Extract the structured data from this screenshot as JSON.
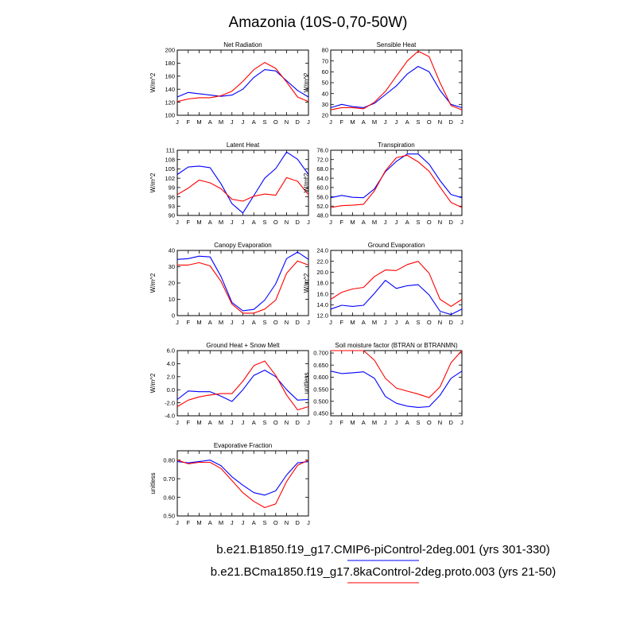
{
  "title": "Amazonia (10S-0,70-50W)",
  "months": [
    "J",
    "F",
    "M",
    "A",
    "M",
    "J",
    "J",
    "A",
    "S",
    "O",
    "N",
    "D",
    "J"
  ],
  "legend": [
    {
      "label": "b.e21.B1850.f19_g17.CMIP6-piControl-2deg.001 (yrs 301-330)",
      "color": "#0000ff"
    },
    {
      "label": "b.e21.BCma1850.f19_g17.8kaControl-2deg.proto.003 (yrs 21-50)",
      "color": "#ff0000"
    }
  ],
  "chart_data": [
    {
      "type": "line",
      "title": "Net Radiation",
      "ylabel": "W/m^2",
      "ylim": [
        100,
        200
      ],
      "yticks": [
        100,
        120,
        140,
        160,
        180,
        200
      ],
      "ytick_labels": [
        "100",
        "120",
        "140",
        "160",
        "180",
        "200"
      ],
      "series": [
        {
          "name": "b.e21.B1850.f19_g17.CMIP6-piControl-2deg.001 (yrs 301-330)",
          "color": "#0000ff",
          "values": [
            128,
            135,
            133,
            131,
            129,
            131,
            140,
            158,
            170,
            168,
            153,
            138,
            128
          ]
        },
        {
          "name": "b.e21.BCma1850.f19_g17.8kaControl-2deg.proto.003 (yrs 21-50)",
          "color": "#ff0000",
          "values": [
            121,
            125,
            127,
            127,
            130,
            137,
            152,
            170,
            181,
            172,
            151,
            128,
            121
          ]
        }
      ]
    },
    {
      "type": "line",
      "title": "Sensible Heat",
      "ylabel": "W/m^2",
      "ylim": [
        20,
        80
      ],
      "yticks": [
        20,
        30,
        40,
        50,
        60,
        70,
        80
      ],
      "ytick_labels": [
        "20",
        "30",
        "40",
        "50",
        "60",
        "70",
        "80"
      ],
      "series": [
        {
          "name": "b.e21.B1850.f19_g17.CMIP6-piControl-2deg.001 (yrs 301-330)",
          "color": "#0000ff",
          "values": [
            27,
            30,
            28,
            27,
            31,
            39,
            47,
            58,
            65,
            60,
            43,
            30,
            27
          ]
        },
        {
          "name": "b.e21.BCma1850.f19_g17.8kaControl-2deg.proto.003 (yrs 21-50)",
          "color": "#ff0000",
          "values": [
            25,
            27,
            27,
            26,
            32,
            42,
            56,
            70,
            79,
            74,
            50,
            29,
            25
          ]
        }
      ]
    },
    {
      "type": "line",
      "title": "Latent Heat",
      "ylabel": "W/m^2",
      "ylim": [
        90,
        111
      ],
      "yticks": [
        90,
        93,
        96,
        99,
        102,
        105,
        108,
        111
      ],
      "ytick_labels": [
        "90",
        "93",
        "96",
        "99",
        "102",
        "105",
        "108",
        "111"
      ],
      "series": [
        {
          "name": "b.e21.B1850.f19_g17.CMIP6-piControl-2deg.001 (yrs 301-330)",
          "color": "#0000ff",
          "values": [
            103.2,
            105.6,
            105.9,
            105.4,
            100.2,
            93.8,
            90.8,
            96.4,
            102.0,
            105.1,
            110.4,
            108.1,
            103.2
          ]
        },
        {
          "name": "b.e21.BCma1850.f19_g17.8kaControl-2deg.proto.003 (yrs 21-50)",
          "color": "#ff0000",
          "values": [
            96.7,
            98.8,
            101.4,
            100.5,
            98.6,
            95.2,
            94.6,
            96.2,
            96.9,
            96.5,
            102.2,
            101.0,
            96.7
          ]
        }
      ]
    },
    {
      "type": "line",
      "title": "Transpiration",
      "ylabel": "W/m^2",
      "ylim": [
        48,
        76
      ],
      "yticks": [
        48,
        52,
        56,
        60,
        64,
        68,
        72,
        76
      ],
      "ytick_labels": [
        "48.0",
        "52.0",
        "56.0",
        "60.0",
        "64.0",
        "68.0",
        "72.0",
        "76.0"
      ],
      "series": [
        {
          "name": "b.e21.B1850.f19_g17.CMIP6-piControl-2deg.001 (yrs 301-330)",
          "color": "#0000ff",
          "values": [
            55.6,
            56.6,
            55.8,
            55.6,
            59.4,
            66.8,
            71.2,
            74.4,
            74.4,
            70.0,
            63.0,
            57.0,
            55.6
          ]
        },
        {
          "name": "b.e21.BCma1850.f19_g17.8kaControl-2deg.proto.003 (yrs 21-50)",
          "color": "#ff0000",
          "values": [
            51.4,
            52.2,
            52.4,
            52.8,
            58.6,
            67.2,
            72.8,
            73.8,
            71.0,
            67.0,
            60.2,
            53.6,
            51.4
          ]
        }
      ]
    },
    {
      "type": "line",
      "title": "Canopy Evaporation",
      "ylabel": "W/m^2",
      "ylim": [
        0,
        40
      ],
      "yticks": [
        0,
        10,
        20,
        30,
        40
      ],
      "ytick_labels": [
        "0",
        "10",
        "20",
        "30",
        "40"
      ],
      "series": [
        {
          "name": "b.e21.B1850.f19_g17.CMIP6-piControl-2deg.001 (yrs 301-330)",
          "color": "#0000ff",
          "values": [
            34.5,
            35.0,
            36.5,
            36.0,
            24.0,
            8.0,
            3.0,
            3.8,
            9.5,
            19.5,
            35.0,
            39.0,
            34.5
          ]
        },
        {
          "name": "b.e21.BCma1850.f19_g17.8kaControl-2deg.proto.003 (yrs 21-50)",
          "color": "#ff0000",
          "values": [
            31.0,
            31.0,
            32.5,
            30.5,
            21.0,
            7.0,
            1.5,
            1.5,
            4.0,
            9.5,
            26.0,
            33.5,
            31.0
          ]
        }
      ]
    },
    {
      "type": "line",
      "title": "Ground Evaporation",
      "ylabel": "W/m^2",
      "ylim": [
        12,
        24
      ],
      "yticks": [
        12,
        14,
        16,
        18,
        20,
        22,
        24
      ],
      "ytick_labels": [
        "12.0",
        "14.0",
        "16.0",
        "18.0",
        "20.0",
        "22.0",
        "24.0"
      ],
      "series": [
        {
          "name": "b.e21.B1850.f19_g17.CMIP6-piControl-2deg.001 (yrs 301-330)",
          "color": "#0000ff",
          "values": [
            13.2,
            13.9,
            13.7,
            13.9,
            16.1,
            18.5,
            17.0,
            17.5,
            17.7,
            15.8,
            12.8,
            12.2,
            13.2
          ]
        },
        {
          "name": "b.e21.BCma1850.f19_g17.8kaControl-2deg.proto.003 (yrs 21-50)",
          "color": "#ff0000",
          "values": [
            15.0,
            16.3,
            16.9,
            17.2,
            19.2,
            20.4,
            20.3,
            21.4,
            22.0,
            19.8,
            15.0,
            13.7,
            15.0
          ]
        }
      ]
    },
    {
      "type": "line",
      "title": "Ground Heat + Snow Melt",
      "ylabel": "W/m^2",
      "ylim": [
        -4,
        6
      ],
      "yticks": [
        -4,
        -2,
        0,
        2,
        4,
        6
      ],
      "ytick_labels": [
        "-4.0",
        "-2.0",
        "0.0",
        "2.0",
        "4.0",
        "6.0"
      ],
      "series": [
        {
          "name": "b.e21.B1850.f19_g17.CMIP6-piControl-2deg.001 (yrs 301-330)",
          "color": "#0000ff",
          "values": [
            -1.5,
            -0.2,
            -0.3,
            -0.3,
            -1.0,
            -1.8,
            0.0,
            2.2,
            3.0,
            2.0,
            0.0,
            -1.6,
            -1.5
          ]
        },
        {
          "name": "b.e21.BCma1850.f19_g17.8kaControl-2deg.proto.003 (yrs 21-50)",
          "color": "#ff0000",
          "values": [
            -2.6,
            -1.6,
            -1.1,
            -0.8,
            -0.6,
            -0.6,
            1.3,
            3.7,
            4.4,
            2.2,
            -0.8,
            -3.1,
            -2.6
          ]
        }
      ]
    },
    {
      "type": "line",
      "title": "Soil moisture factor (BTRAN or BTRANMN)",
      "ylabel": "unitless",
      "ylim": [
        0.44,
        0.71
      ],
      "yticks": [
        0.45,
        0.5,
        0.55,
        0.6,
        0.65,
        0.7
      ],
      "ytick_labels": [
        "0.450",
        "0.500",
        "0.550",
        "0.600",
        "0.650",
        "0.700"
      ],
      "series": [
        {
          "name": "b.e21.B1850.f19_g17.CMIP6-piControl-2deg.001 (yrs 301-330)",
          "color": "#0000ff",
          "values": [
            0.625,
            0.615,
            0.618,
            0.622,
            0.595,
            0.52,
            0.492,
            0.48,
            0.475,
            0.478,
            0.525,
            0.595,
            0.625
          ]
        },
        {
          "name": "b.e21.BCma1850.f19_g17.8kaControl-2deg.proto.003 (yrs 21-50)",
          "color": "#ff0000",
          "values": [
            0.71,
            0.71,
            0.71,
            0.71,
            0.67,
            0.595,
            0.555,
            0.542,
            0.53,
            0.515,
            0.56,
            0.66,
            0.71
          ]
        }
      ]
    },
    {
      "type": "line",
      "title": "Evaporative Fraction",
      "ylabel": "unitless",
      "ylim": [
        0.5,
        0.85
      ],
      "yticks": [
        0.5,
        0.6,
        0.7,
        0.8
      ],
      "ytick_labels": [
        "0.50",
        "0.60",
        "0.70",
        "0.80"
      ],
      "series": [
        {
          "name": "b.e21.B1850.f19_g17.CMIP6-piControl-2deg.001 (yrs 301-330)",
          "color": "#0000ff",
          "values": [
            0.792,
            0.785,
            0.792,
            0.8,
            0.77,
            0.71,
            0.665,
            0.625,
            0.612,
            0.635,
            0.72,
            0.785,
            0.792
          ]
        },
        {
          "name": "b.e21.BCma1850.f19_g17.8kaControl-2deg.proto.003 (yrs 21-50)",
          "color": "#ff0000",
          "values": [
            0.8,
            0.78,
            0.788,
            0.788,
            0.755,
            0.69,
            0.625,
            0.578,
            0.545,
            0.565,
            0.685,
            0.772,
            0.8
          ]
        }
      ]
    }
  ]
}
